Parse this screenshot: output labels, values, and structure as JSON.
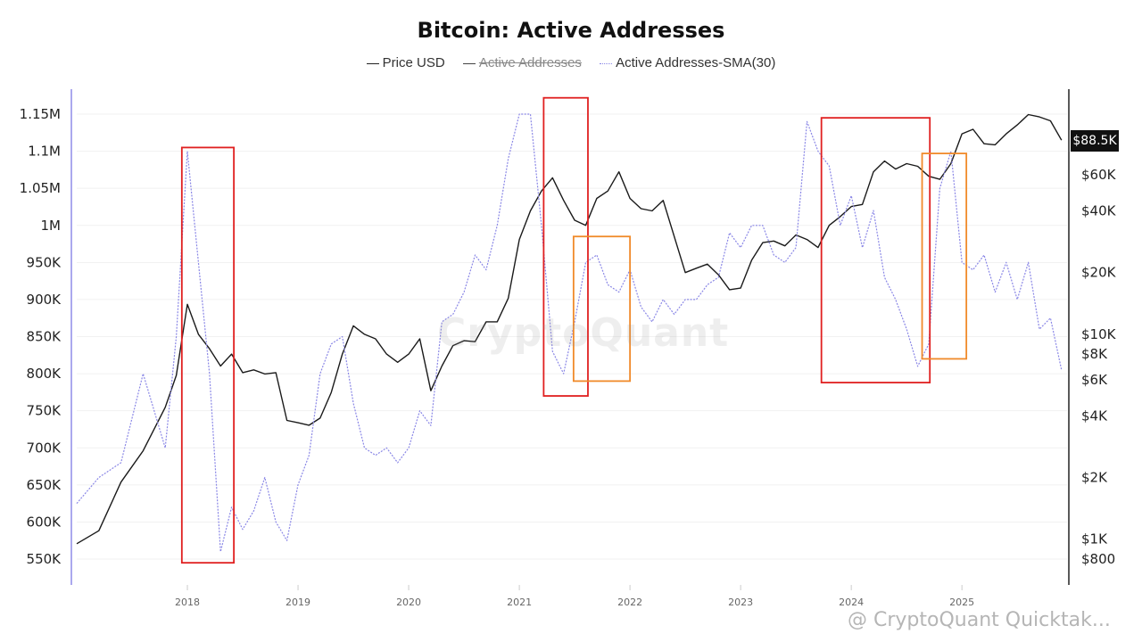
{
  "chart_data": {
    "type": "line",
    "title": "Bitcoin: Active Addresses",
    "legend": {
      "position": "top-center",
      "items": [
        {
          "label": "Price USD",
          "color": "#222222",
          "style": "solid",
          "enabled": true
        },
        {
          "label": "Active Addresses",
          "color": "#444444",
          "style": "solid",
          "enabled": false
        },
        {
          "label": "Active Addresses-SMA(30)",
          "color": "#8a87e6",
          "style": "dotted",
          "enabled": true
        }
      ]
    },
    "x_axis": {
      "ticks": [
        "2018",
        "2019",
        "2020",
        "2021",
        "2022",
        "2023",
        "2024",
        "2025"
      ],
      "range": [
        "2017-01",
        "2025-12"
      ]
    },
    "y_left": {
      "ticks": [
        "1.15M",
        "1.1M",
        "1.05M",
        "1M",
        "950K",
        "900K",
        "850K",
        "800K",
        "750K",
        "700K",
        "650K",
        "600K",
        "550K"
      ],
      "ylim": [
        520000,
        1170000
      ]
    },
    "y_right": {
      "scale": "log",
      "ticks": [
        "$60K",
        "$40K",
        "$20K",
        "$10K",
        "$8K",
        "$6K",
        "$4K",
        "$2K",
        "$1K",
        "$800"
      ],
      "current_price_label": "$88.5K"
    },
    "x": [
      2017.0,
      2017.2,
      2017.4,
      2017.6,
      2017.8,
      2017.9,
      2018.0,
      2018.1,
      2018.2,
      2018.3,
      2018.4,
      2018.5,
      2018.6,
      2018.7,
      2018.8,
      2018.9,
      2019.0,
      2019.1,
      2019.2,
      2019.3,
      2019.4,
      2019.5,
      2019.6,
      2019.7,
      2019.8,
      2019.9,
      2020.0,
      2020.1,
      2020.2,
      2020.3,
      2020.4,
      2020.5,
      2020.6,
      2020.7,
      2020.8,
      2020.9,
      2021.0,
      2021.1,
      2021.2,
      2021.3,
      2021.4,
      2021.5,
      2021.6,
      2021.7,
      2021.8,
      2021.9,
      2022.0,
      2022.1,
      2022.2,
      2022.3,
      2022.4,
      2022.5,
      2022.6,
      2022.7,
      2022.8,
      2022.9,
      2023.0,
      2023.1,
      2023.2,
      2023.3,
      2023.4,
      2023.5,
      2023.6,
      2023.7,
      2023.8,
      2023.9,
      2024.0,
      2024.1,
      2024.2,
      2024.3,
      2024.4,
      2024.5,
      2024.6,
      2024.7,
      2024.8,
      2024.9,
      2025.0,
      2025.1,
      2025.2,
      2025.3,
      2025.4,
      2025.5,
      2025.6,
      2025.7,
      2025.8,
      2025.9
    ],
    "series": [
      {
        "name": "Price USD",
        "axis": "right",
        "values": [
          950,
          1100,
          1900,
          2700,
          4400,
          6300,
          14000,
          10000,
          8500,
          7000,
          8000,
          6500,
          6700,
          6400,
          6500,
          3800,
          3700,
          3600,
          3900,
          5200,
          8000,
          11000,
          10000,
          9500,
          8000,
          7300,
          8000,
          9500,
          5300,
          7000,
          8800,
          9300,
          9200,
          11500,
          11500,
          15000,
          29000,
          40000,
          50000,
          58000,
          45000,
          36000,
          34000,
          46000,
          50000,
          62000,
          46000,
          41000,
          40000,
          45000,
          30000,
          20000,
          21000,
          22000,
          19500,
          16500,
          16800,
          23000,
          28000,
          28500,
          27000,
          30500,
          29000,
          26500,
          34000,
          37500,
          42000,
          43000,
          62000,
          70000,
          64000,
          68000,
          66000,
          59000,
          57000,
          68000,
          95000,
          100000,
          85000,
          84000,
          95000,
          105000,
          118000,
          115000,
          110000,
          88500
        ]
      },
      {
        "name": "Active Addresses-SMA(30)",
        "axis": "left",
        "values": [
          625000,
          660000,
          680000,
          800000,
          700000,
          850000,
          1100000,
          950000,
          800000,
          560000,
          620000,
          590000,
          615000,
          660000,
          600000,
          575000,
          650000,
          690000,
          800000,
          840000,
          850000,
          760000,
          700000,
          690000,
          700000,
          680000,
          700000,
          750000,
          730000,
          870000,
          880000,
          910000,
          960000,
          940000,
          1000000,
          1090000,
          1150000,
          1150000,
          1000000,
          830000,
          800000,
          870000,
          950000,
          960000,
          920000,
          910000,
          940000,
          890000,
          870000,
          900000,
          880000,
          900000,
          900000,
          920000,
          930000,
          990000,
          970000,
          1000000,
          1000000,
          960000,
          950000,
          970000,
          1140000,
          1100000,
          1080000,
          1000000,
          1040000,
          970000,
          1020000,
          930000,
          900000,
          860000,
          810000,
          840000,
          1050000,
          1100000,
          950000,
          940000,
          960000,
          910000,
          950000,
          900000,
          950000,
          860000,
          875000,
          805000
        ]
      }
    ],
    "annotations": [
      {
        "type": "box",
        "color": "#e02020",
        "x": [
          2017.95,
          2018.42
        ],
        "y": [
          545000,
          1105000
        ]
      },
      {
        "type": "box",
        "color": "#e02020",
        "x": [
          2021.22,
          2021.62
        ],
        "y": [
          770000,
          1172000
        ]
      },
      {
        "type": "box",
        "color": "#f08a2a",
        "x": [
          2021.49,
          2022.0
        ],
        "y": [
          790000,
          985000
        ]
      },
      {
        "type": "box",
        "color": "#e02020",
        "x": [
          2023.73,
          2024.71
        ],
        "y": [
          788000,
          1145000
        ]
      },
      {
        "type": "box",
        "color": "#f08a2a",
        "x": [
          2024.64,
          2025.04
        ],
        "y": [
          820000,
          1097000
        ]
      }
    ],
    "grid": true
  },
  "watermark": "CryptoQuant",
  "footer_watermark": "@ CryptoQuant Quicktak..."
}
